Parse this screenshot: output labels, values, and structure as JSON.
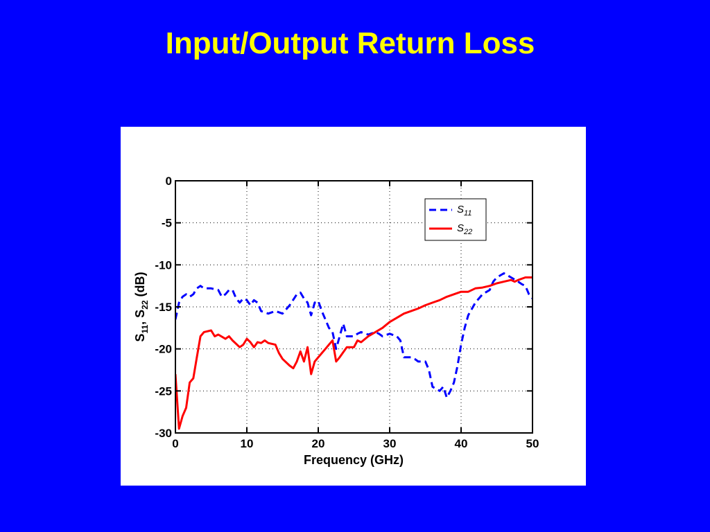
{
  "slide": {
    "title": "Input/Output Return Loss"
  },
  "chart_data": {
    "type": "line",
    "title": "",
    "xlabel": "Frequency (GHz)",
    "ylabel": {
      "base": "S",
      "sub1": "11",
      "sep": ", ",
      "sub2": "22",
      "unit": " (dB)"
    },
    "xlim": [
      0,
      50
    ],
    "ylim": [
      -30,
      0
    ],
    "x_ticks": [
      0,
      10,
      20,
      30,
      40,
      50
    ],
    "y_ticks": [
      0,
      -5,
      -10,
      -15,
      -20,
      -25,
      -30
    ],
    "grid": true,
    "grid_style": "dotted",
    "legend_position": "top-right",
    "series": [
      {
        "name": "S11",
        "name_base": "S",
        "name_sub": "11",
        "color": "#0000ff",
        "dash": "dashed",
        "points": [
          [
            0,
            -16.5
          ],
          [
            0.5,
            -14.5
          ],
          [
            1,
            -13.8
          ],
          [
            1.5,
            -13.5
          ],
          [
            2,
            -13.8
          ],
          [
            2.5,
            -13.5
          ],
          [
            3,
            -12.8
          ],
          [
            3.5,
            -12.5
          ],
          [
            4,
            -12.8
          ],
          [
            5,
            -12.8
          ],
          [
            6,
            -13
          ],
          [
            6.5,
            -13.8
          ],
          [
            7,
            -13.5
          ],
          [
            7.5,
            -13
          ],
          [
            8,
            -13
          ],
          [
            8.5,
            -14
          ],
          [
            9,
            -14.5
          ],
          [
            9.5,
            -14
          ],
          [
            10,
            -14.2
          ],
          [
            10.5,
            -14.8
          ],
          [
            11,
            -14.2
          ],
          [
            11.5,
            -14.5
          ],
          [
            12,
            -15.5
          ],
          [
            13,
            -15.8
          ],
          [
            14,
            -15.5
          ],
          [
            15,
            -15.8
          ],
          [
            15.5,
            -15.3
          ],
          [
            16,
            -14.8
          ],
          [
            17,
            -13.5
          ],
          [
            17.5,
            -13.3
          ],
          [
            18,
            -14
          ],
          [
            18.5,
            -14.5
          ],
          [
            19,
            -16
          ],
          [
            19.5,
            -14.5
          ],
          [
            20,
            -14.3
          ],
          [
            20.5,
            -15.5
          ],
          [
            21,
            -16.5
          ],
          [
            21.5,
            -17.5
          ],
          [
            22,
            -18
          ],
          [
            22.5,
            -20
          ],
          [
            23,
            -18.5
          ],
          [
            23.5,
            -17
          ],
          [
            24,
            -18.5
          ],
          [
            25,
            -18.5
          ],
          [
            25.5,
            -18.2
          ],
          [
            26,
            -18
          ],
          [
            27,
            -18.3
          ],
          [
            28,
            -18
          ],
          [
            28.5,
            -18.2
          ],
          [
            29,
            -18.5
          ],
          [
            30,
            -18.2
          ],
          [
            31,
            -18.5
          ],
          [
            31.5,
            -19
          ],
          [
            32,
            -21
          ],
          [
            33,
            -21
          ],
          [
            33.5,
            -21.2
          ],
          [
            34,
            -21.5
          ],
          [
            35,
            -21.5
          ],
          [
            35.5,
            -22.5
          ],
          [
            36,
            -24.5
          ],
          [
            37,
            -25
          ],
          [
            37.5,
            -24.5
          ],
          [
            38,
            -25.8
          ],
          [
            38.5,
            -25
          ],
          [
            39,
            -24
          ],
          [
            39.5,
            -22
          ],
          [
            40,
            -19.5
          ],
          [
            40.5,
            -17.5
          ],
          [
            41,
            -16
          ],
          [
            42,
            -14.5
          ],
          [
            43,
            -13.5
          ],
          [
            44,
            -13
          ],
          [
            44.5,
            -12
          ],
          [
            45,
            -11.5
          ],
          [
            46,
            -11
          ],
          [
            47,
            -11.5
          ],
          [
            48,
            -12
          ],
          [
            48.5,
            -12.3
          ],
          [
            49,
            -12.5
          ],
          [
            49.5,
            -13.5
          ],
          [
            50,
            -14
          ]
        ]
      },
      {
        "name": "S22",
        "name_base": "S",
        "name_sub": "22",
        "color": "#ff0000",
        "dash": "solid",
        "points": [
          [
            0,
            -23
          ],
          [
            0.5,
            -29.5
          ],
          [
            1,
            -28
          ],
          [
            1.5,
            -27
          ],
          [
            2,
            -24
          ],
          [
            2.5,
            -23.5
          ],
          [
            3,
            -21
          ],
          [
            3.5,
            -18.5
          ],
          [
            4,
            -18
          ],
          [
            5,
            -17.8
          ],
          [
            5.5,
            -18.5
          ],
          [
            6,
            -18.3
          ],
          [
            7,
            -18.8
          ],
          [
            7.5,
            -18.5
          ],
          [
            8,
            -19
          ],
          [
            9,
            -19.8
          ],
          [
            9.5,
            -19.5
          ],
          [
            10,
            -18.8
          ],
          [
            10.5,
            -19.2
          ],
          [
            11,
            -19.8
          ],
          [
            11.5,
            -19.2
          ],
          [
            12,
            -19.3
          ],
          [
            12.5,
            -19
          ],
          [
            13,
            -19.3
          ],
          [
            14,
            -19.5
          ],
          [
            14.5,
            -20.5
          ],
          [
            15,
            -21.2
          ],
          [
            16,
            -22
          ],
          [
            16.5,
            -22.3
          ],
          [
            17,
            -21.5
          ],
          [
            17.5,
            -20.3
          ],
          [
            18,
            -21.5
          ],
          [
            18.5,
            -19.8
          ],
          [
            19,
            -23
          ],
          [
            19.5,
            -21.5
          ],
          [
            20,
            -21
          ],
          [
            21,
            -20
          ],
          [
            21.5,
            -19.5
          ],
          [
            22,
            -19
          ],
          [
            22.5,
            -21.5
          ],
          [
            23,
            -21
          ],
          [
            24,
            -19.8
          ],
          [
            25,
            -19.8
          ],
          [
            25.5,
            -19
          ],
          [
            26,
            -19.2
          ],
          [
            27,
            -18.5
          ],
          [
            28,
            -18
          ],
          [
            29,
            -17.5
          ],
          [
            30,
            -16.8
          ],
          [
            31,
            -16.3
          ],
          [
            32,
            -15.8
          ],
          [
            33,
            -15.5
          ],
          [
            34,
            -15.2
          ],
          [
            35,
            -14.8
          ],
          [
            36,
            -14.5
          ],
          [
            37,
            -14.2
          ],
          [
            38,
            -13.8
          ],
          [
            39,
            -13.5
          ],
          [
            40,
            -13.2
          ],
          [
            41,
            -13.2
          ],
          [
            42,
            -12.8
          ],
          [
            43,
            -12.7
          ],
          [
            44,
            -12.5
          ],
          [
            45,
            -12.2
          ],
          [
            46,
            -12
          ],
          [
            47,
            -11.8
          ],
          [
            47.5,
            -12
          ],
          [
            48,
            -11.8
          ],
          [
            49,
            -11.5
          ],
          [
            50,
            -11.5
          ]
        ]
      }
    ]
  }
}
